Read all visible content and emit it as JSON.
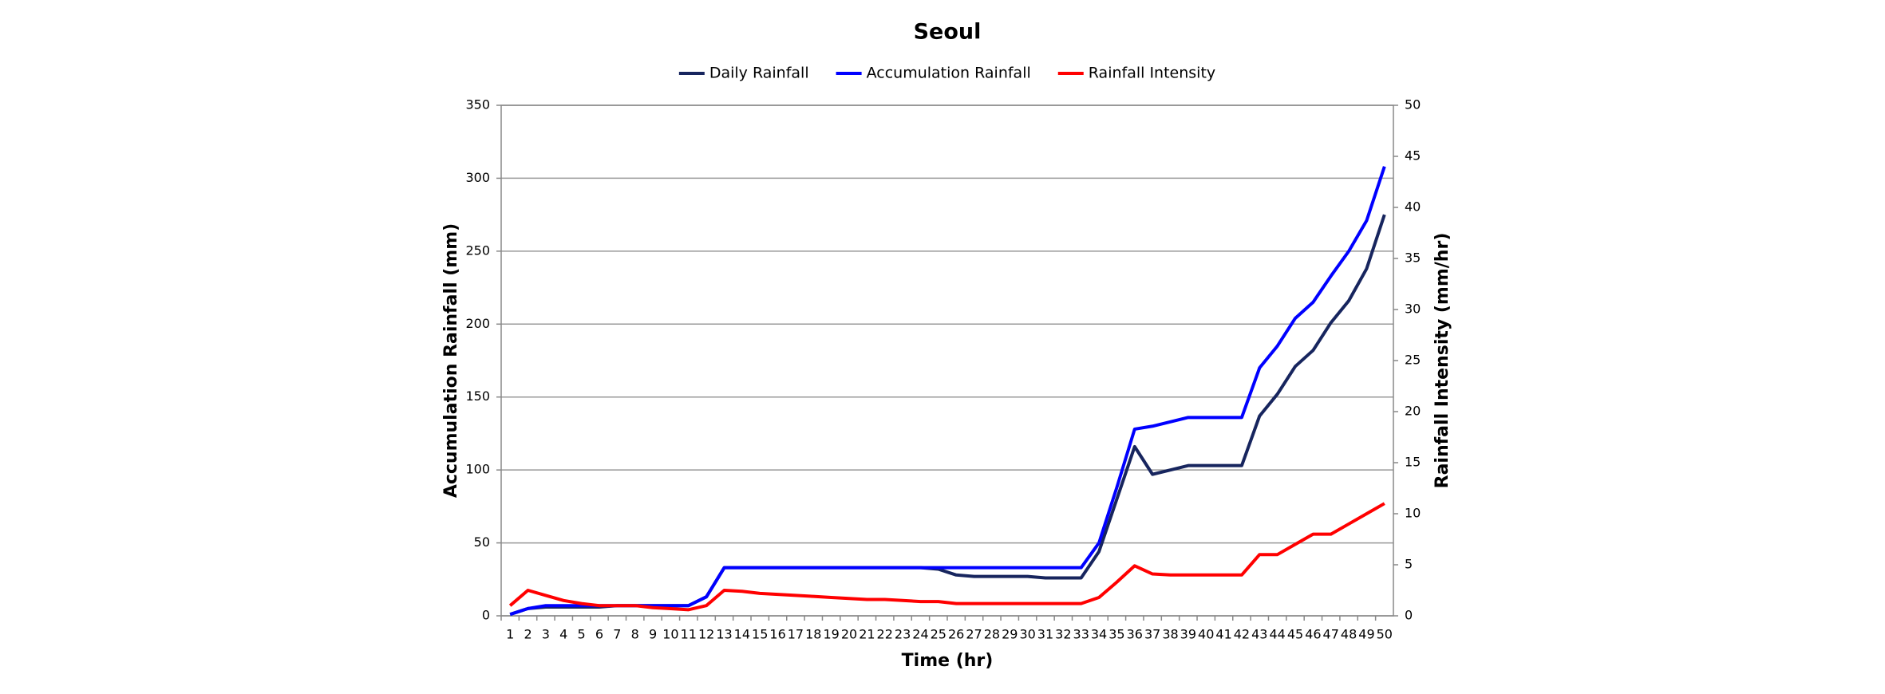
{
  "chart_data": {
    "type": "line",
    "title": "Seoul",
    "x_label": "Time (hr)",
    "y_label": "Accumulation Rainfall (mm)",
    "y2_label": "Rainfall Intensity (mm/hr)",
    "categories": [
      1,
      2,
      3,
      4,
      5,
      6,
      7,
      8,
      9,
      10,
      11,
      12,
      13,
      14,
      15,
      16,
      17,
      18,
      19,
      20,
      21,
      22,
      23,
      24,
      25,
      26,
      27,
      28,
      29,
      30,
      31,
      32,
      33,
      34,
      35,
      36,
      37,
      38,
      39,
      40,
      41,
      42,
      43,
      44,
      45,
      46,
      47,
      48,
      49,
      50
    ],
    "series": [
      {
        "name": "Daily Rainfall",
        "color": "#17255e",
        "values": [
          1,
          5,
          6,
          6,
          6,
          6,
          7,
          7,
          7,
          7,
          7,
          13,
          33,
          33,
          33,
          33,
          33,
          33,
          33,
          33,
          33,
          33,
          33,
          33,
          32,
          28,
          27,
          27,
          27,
          27,
          26,
          26,
          26,
          44,
          80,
          116,
          97,
          100,
          103,
          103,
          103,
          103,
          137,
          152,
          171,
          182,
          201,
          216,
          238,
          275
        ]
      },
      {
        "name": "Accumulation Rainfall",
        "color": "#0000ff",
        "values": [
          1,
          5,
          7,
          7,
          7,
          7,
          7,
          7,
          7,
          7,
          7,
          13,
          33,
          33,
          33,
          33,
          33,
          33,
          33,
          33,
          33,
          33,
          33,
          33,
          33,
          33,
          33,
          33,
          33,
          33,
          33,
          33,
          33,
          50,
          88,
          128,
          130,
          133,
          136,
          136,
          136,
          136,
          170,
          185,
          204,
          215,
          233,
          250,
          271,
          308
        ]
      },
      {
        "name": "Rainfall Intensity",
        "color": "#ff0000",
        "axis": "y2",
        "values": [
          1,
          2.5,
          2,
          1.5,
          1.2,
          1,
          1,
          1,
          0.8,
          0.7,
          0.6,
          1,
          2.5,
          2.4,
          2.2,
          2.1,
          2,
          1.9,
          1.8,
          1.7,
          1.6,
          1.6,
          1.5,
          1.4,
          1.4,
          1.2,
          1.2,
          1.2,
          1.2,
          1.2,
          1.2,
          1.2,
          1.2,
          1.8,
          3.3,
          4.9,
          4.1,
          4,
          4,
          4,
          4,
          4,
          6,
          6,
          7,
          8,
          8,
          9,
          10,
          11
        ]
      }
    ],
    "ylim": [
      0,
      350
    ],
    "yticks": [
      0,
      50,
      100,
      150,
      200,
      250,
      300,
      350
    ],
    "y2lim": [
      0,
      50
    ],
    "y2ticks": [
      0,
      5,
      10,
      15,
      20,
      25,
      30,
      35,
      40,
      45,
      50
    ],
    "grid": true,
    "legend": "top"
  }
}
